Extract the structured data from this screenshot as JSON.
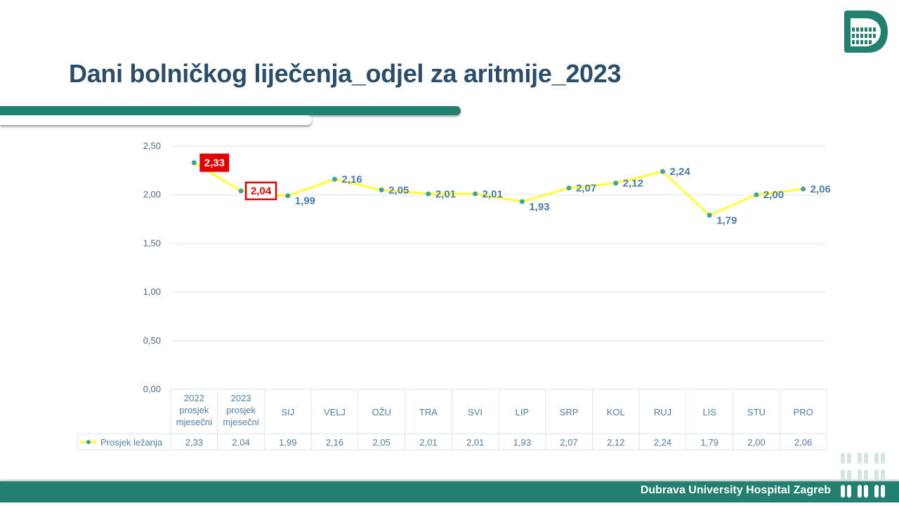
{
  "slide": {
    "title": "Dani bolničkog liječenja_odjel za aritmije_2023",
    "footer": "Dubrava University Hospital Zagreb",
    "accent_color": "#22806f",
    "title_color": "#2a4d69"
  },
  "chart_data": {
    "type": "line",
    "title": "",
    "xlabel": "",
    "ylabel": "",
    "ylim": [
      0,
      2.5
    ],
    "y_ticks": [
      "0,00",
      "0,50",
      "1,00",
      "1,50",
      "2,00",
      "2,50"
    ],
    "y_tick_values": [
      0,
      0.5,
      1,
      1.5,
      2,
      2.5
    ],
    "grid": true,
    "categories": [
      [
        "2022",
        "prosjek",
        "mjesečni"
      ],
      [
        "2023",
        "prosjek",
        "mjesečni"
      ],
      [
        "SIJ"
      ],
      [
        "VELJ"
      ],
      [
        "OŽU"
      ],
      [
        "TRA"
      ],
      [
        "SVI"
      ],
      [
        "LIP"
      ],
      [
        "SRP"
      ],
      [
        "KOL"
      ],
      [
        "RUJ"
      ],
      [
        "LIS"
      ],
      [
        "STU"
      ],
      [
        "PRO"
      ]
    ],
    "series": [
      {
        "name": "Prosjek ležanja",
        "color": "#ffff33",
        "marker_color": "#3fa39a",
        "values": [
          2.33,
          2.04,
          1.99,
          2.16,
          2.05,
          2.01,
          2.01,
          1.93,
          2.07,
          2.12,
          2.24,
          1.79,
          2.0,
          2.06
        ],
        "labels": [
          "2,33",
          "2,04",
          "1,99",
          "2,16",
          "2,05",
          "2,01",
          "2,01",
          "1,93",
          "2,07",
          "2,12",
          "2,24",
          "1,79",
          "2,00",
          "2,06"
        ]
      }
    ],
    "highlight": [
      {
        "index": 0,
        "style": "red-fill"
      },
      {
        "index": 1,
        "style": "red-outline"
      }
    ],
    "data_table": true
  }
}
